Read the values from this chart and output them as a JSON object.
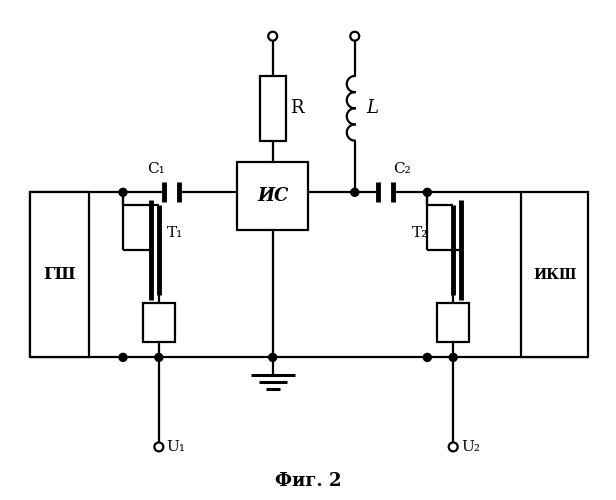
{
  "title": "Фиг. 2",
  "background_color": "#ffffff",
  "line_color": "#000000",
  "line_width": 1.6,
  "fig_width": 6.16,
  "fig_height": 5.0,
  "labels": {
    "GSH": "ГШ",
    "IKSh": "ИКШ",
    "IS": "ИС",
    "C1": "C₁",
    "C2": "C₂",
    "R": "R",
    "L": "L",
    "T1": "T₁",
    "T2": "T₂",
    "U1": "U₁",
    "U2": "U₂"
  }
}
